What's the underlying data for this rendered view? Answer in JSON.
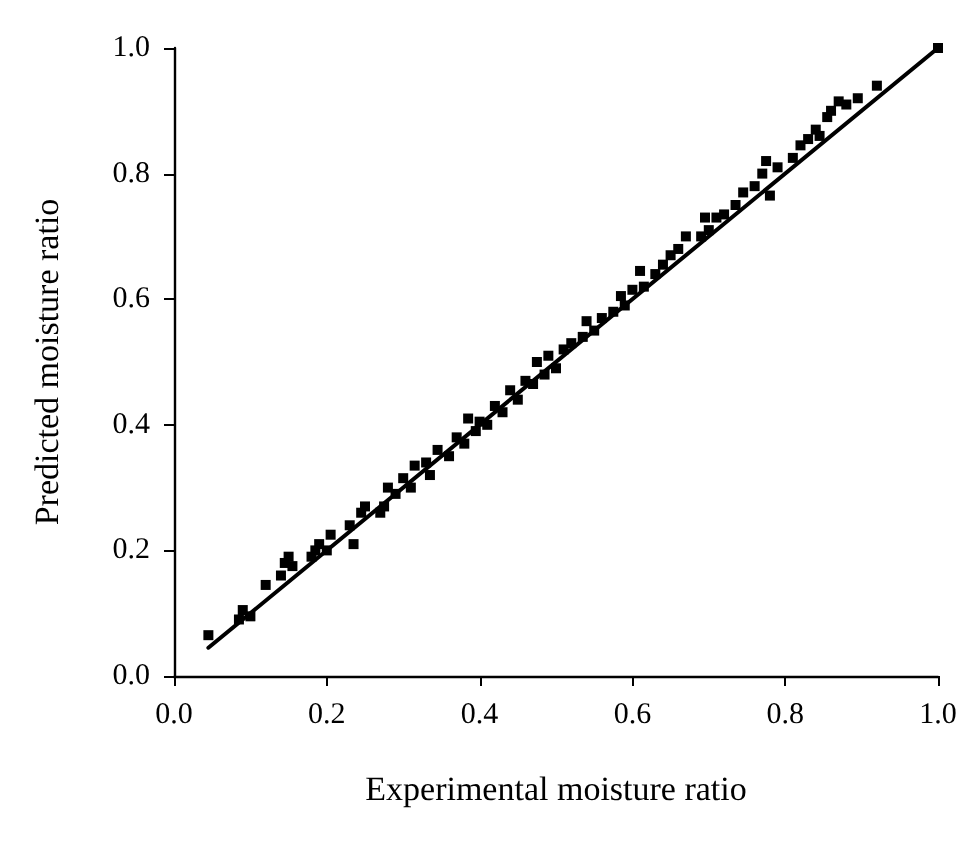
{
  "chart_data": {
    "type": "scatter",
    "xlabel": "Experimental moisture ratio",
    "ylabel": "Predicted moisture ratio",
    "xlim": [
      0,
      1
    ],
    "ylim": [
      0,
      1
    ],
    "xticks": [
      {
        "value": 0,
        "label": "0.0"
      },
      {
        "value": 0.2,
        "label": "0.2"
      },
      {
        "value": 0.4,
        "label": "0.4"
      },
      {
        "value": 0.6,
        "label": "0.6"
      },
      {
        "value": 0.8,
        "label": "0.8"
      },
      {
        "value": 1,
        "label": "1.0"
      }
    ],
    "yticks": [
      {
        "value": 0,
        "label": "0.0"
      },
      {
        "value": 0.2,
        "label": "0.2"
      },
      {
        "value": 0.4,
        "label": "0.4"
      },
      {
        "value": 0.6,
        "label": "0.6"
      },
      {
        "value": 0.8,
        "label": "0.8"
      },
      {
        "value": 1,
        "label": "1.0"
      }
    ],
    "grid": false,
    "marker": "square",
    "series": [
      {
        "color": "#000000",
        "x": [
          0.045,
          0.085,
          0.09,
          0.1,
          0.12,
          0.14,
          0.145,
          0.15,
          0.155,
          0.18,
          0.185,
          0.19,
          0.2,
          0.205,
          0.23,
          0.235,
          0.245,
          0.25,
          0.27,
          0.275,
          0.28,
          0.29,
          0.3,
          0.31,
          0.315,
          0.33,
          0.335,
          0.345,
          0.36,
          0.37,
          0.38,
          0.385,
          0.395,
          0.4,
          0.41,
          0.42,
          0.43,
          0.44,
          0.45,
          0.46,
          0.47,
          0.475,
          0.485,
          0.49,
          0.5,
          0.51,
          0.52,
          0.535,
          0.54,
          0.55,
          0.56,
          0.575,
          0.585,
          0.59,
          0.6,
          0.61,
          0.615,
          0.63,
          0.64,
          0.65,
          0.66,
          0.67,
          0.69,
          0.695,
          0.7,
          0.71,
          0.72,
          0.735,
          0.745,
          0.76,
          0.77,
          0.775,
          0.78,
          0.79,
          0.81,
          0.82,
          0.83,
          0.84,
          0.845,
          0.855,
          0.86,
          0.87,
          0.88,
          0.895,
          0.92,
          1.0
        ],
        "values": [
          0.065,
          0.09,
          0.105,
          0.095,
          0.145,
          0.16,
          0.18,
          0.19,
          0.175,
          0.19,
          0.2,
          0.21,
          0.2,
          0.225,
          0.24,
          0.21,
          0.26,
          0.27,
          0.26,
          0.27,
          0.3,
          0.29,
          0.315,
          0.3,
          0.335,
          0.34,
          0.32,
          0.36,
          0.35,
          0.38,
          0.37,
          0.41,
          0.39,
          0.405,
          0.4,
          0.43,
          0.42,
          0.455,
          0.44,
          0.47,
          0.465,
          0.5,
          0.48,
          0.51,
          0.49,
          0.52,
          0.53,
          0.54,
          0.565,
          0.55,
          0.57,
          0.58,
          0.605,
          0.59,
          0.615,
          0.645,
          0.62,
          0.64,
          0.655,
          0.67,
          0.68,
          0.7,
          0.7,
          0.73,
          0.71,
          0.73,
          0.735,
          0.75,
          0.77,
          0.78,
          0.8,
          0.82,
          0.765,
          0.81,
          0.825,
          0.845,
          0.855,
          0.87,
          0.86,
          0.89,
          0.9,
          0.915,
          0.91,
          0.92,
          0.94,
          1.0
        ]
      },
      {
        "type": "line",
        "color": "#000000",
        "marker": "none",
        "line_style": "solid",
        "x": [
          0.045,
          1.0
        ],
        "values": [
          0.045,
          1.0
        ]
      }
    ]
  }
}
